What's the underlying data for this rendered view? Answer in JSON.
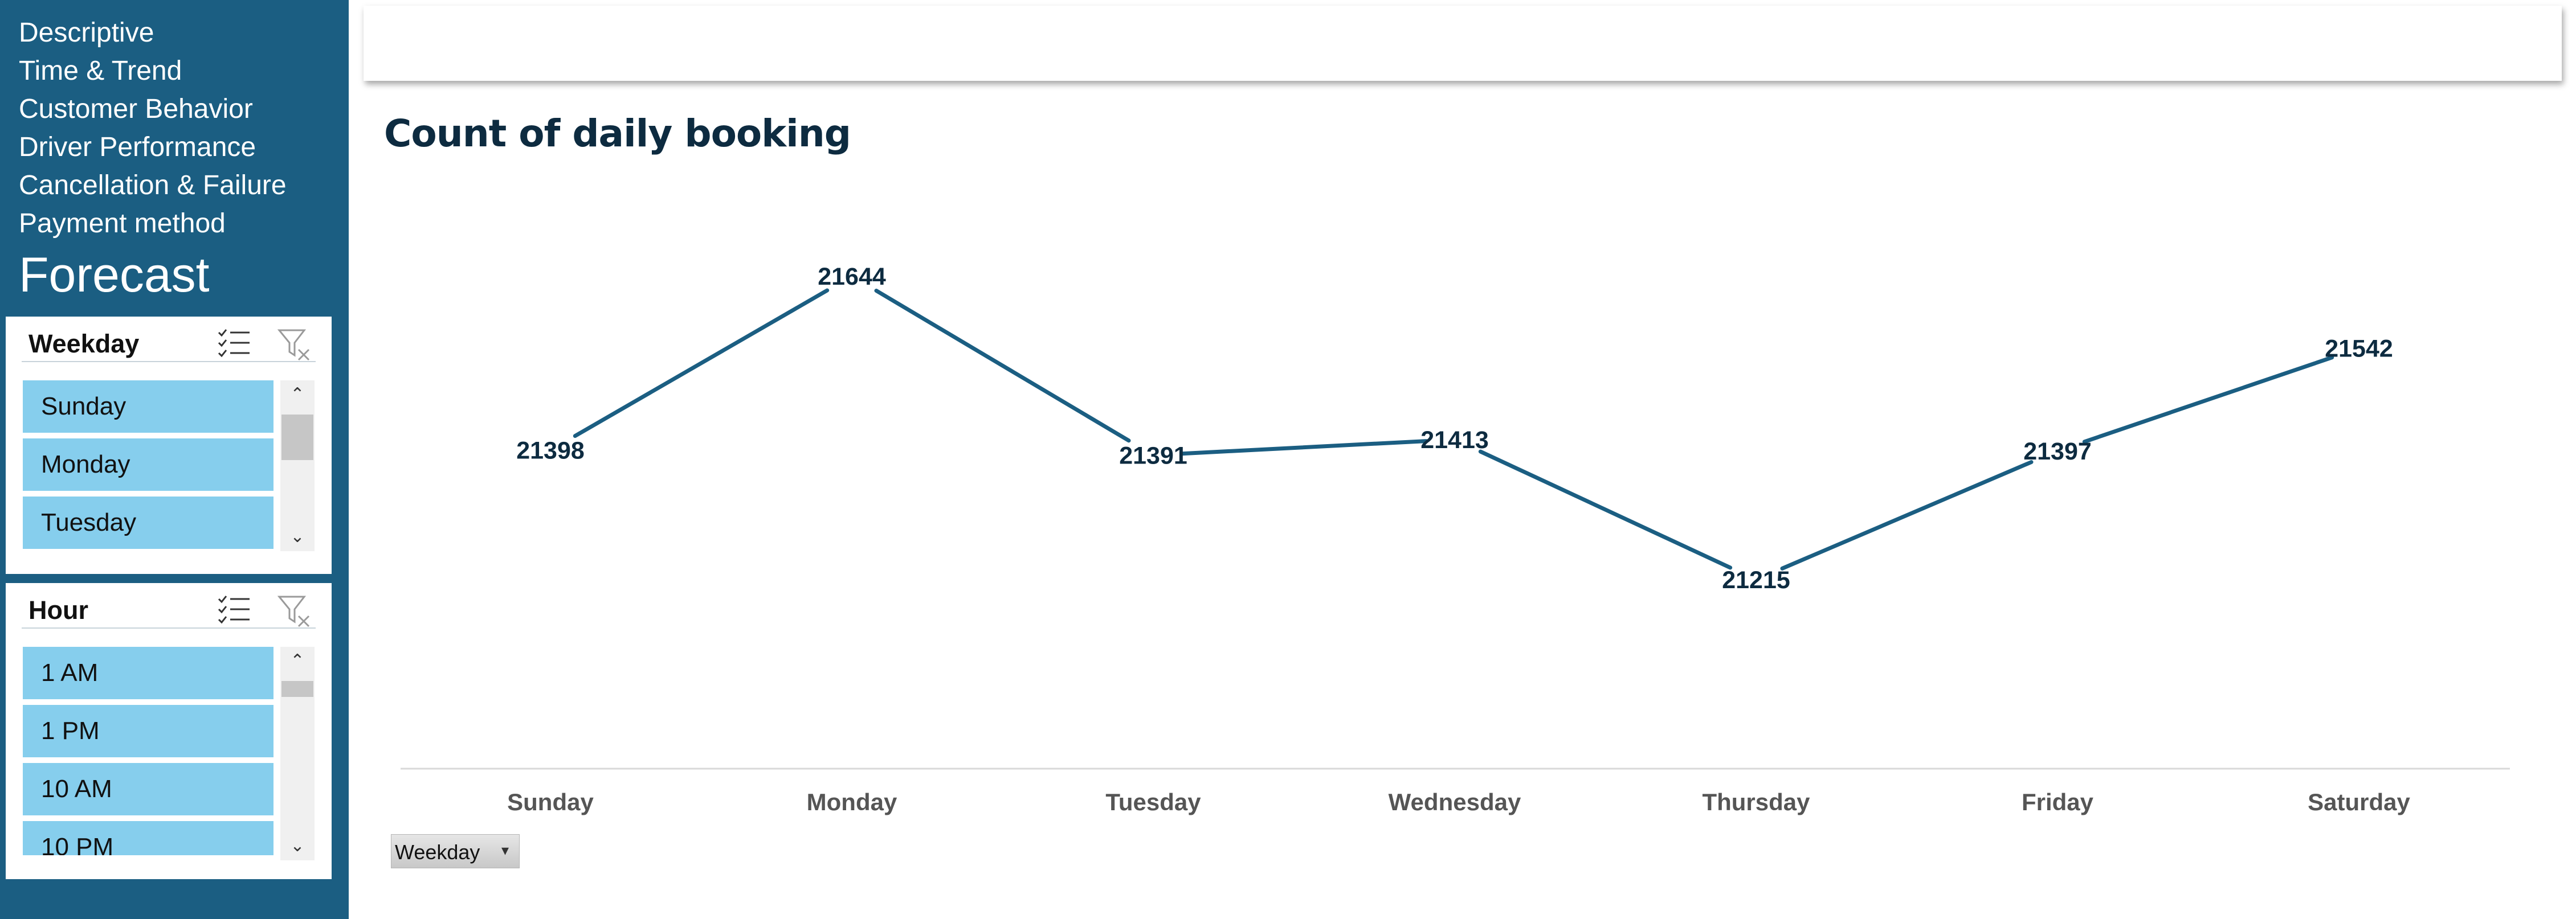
{
  "sidebar": {
    "nav_items": [
      "Descriptive",
      "Time & Trend",
      "Customer Behavior",
      "Driver Performance",
      "Cancellation & Failure",
      "Payment method"
    ],
    "forecast": "Forecast"
  },
  "slicers": {
    "weekday": {
      "title": "Weekday",
      "items": [
        "Sunday",
        "Monday",
        "Tuesday"
      ],
      "icons": [
        "multi-select-icon",
        "clear-filter-icon"
      ]
    },
    "hour": {
      "title": "Hour",
      "items": [
        "1 AM",
        "1 PM",
        "10 AM",
        "10 PM"
      ],
      "icons": [
        "multi-select-icon",
        "clear-filter-icon"
      ]
    },
    "item_color": "#86ceed"
  },
  "chart": {
    "title": "Count of daily booking",
    "field_button": "Weekday"
  },
  "colors": {
    "sidebar": "#1b5e82",
    "line": "#1b5e82",
    "slicer_item": "#86ceed",
    "text_dark": "#0d2b40"
  },
  "chart_data": {
    "type": "line",
    "title": "Count of daily booking",
    "categories": [
      "Sunday",
      "Monday",
      "Tuesday",
      "Wednesday",
      "Thursday",
      "Friday",
      "Saturday"
    ],
    "values": [
      21398,
      21644,
      21391,
      21413,
      21215,
      21397,
      21542
    ],
    "data_labels": true,
    "grid": false,
    "legend": "none"
  }
}
